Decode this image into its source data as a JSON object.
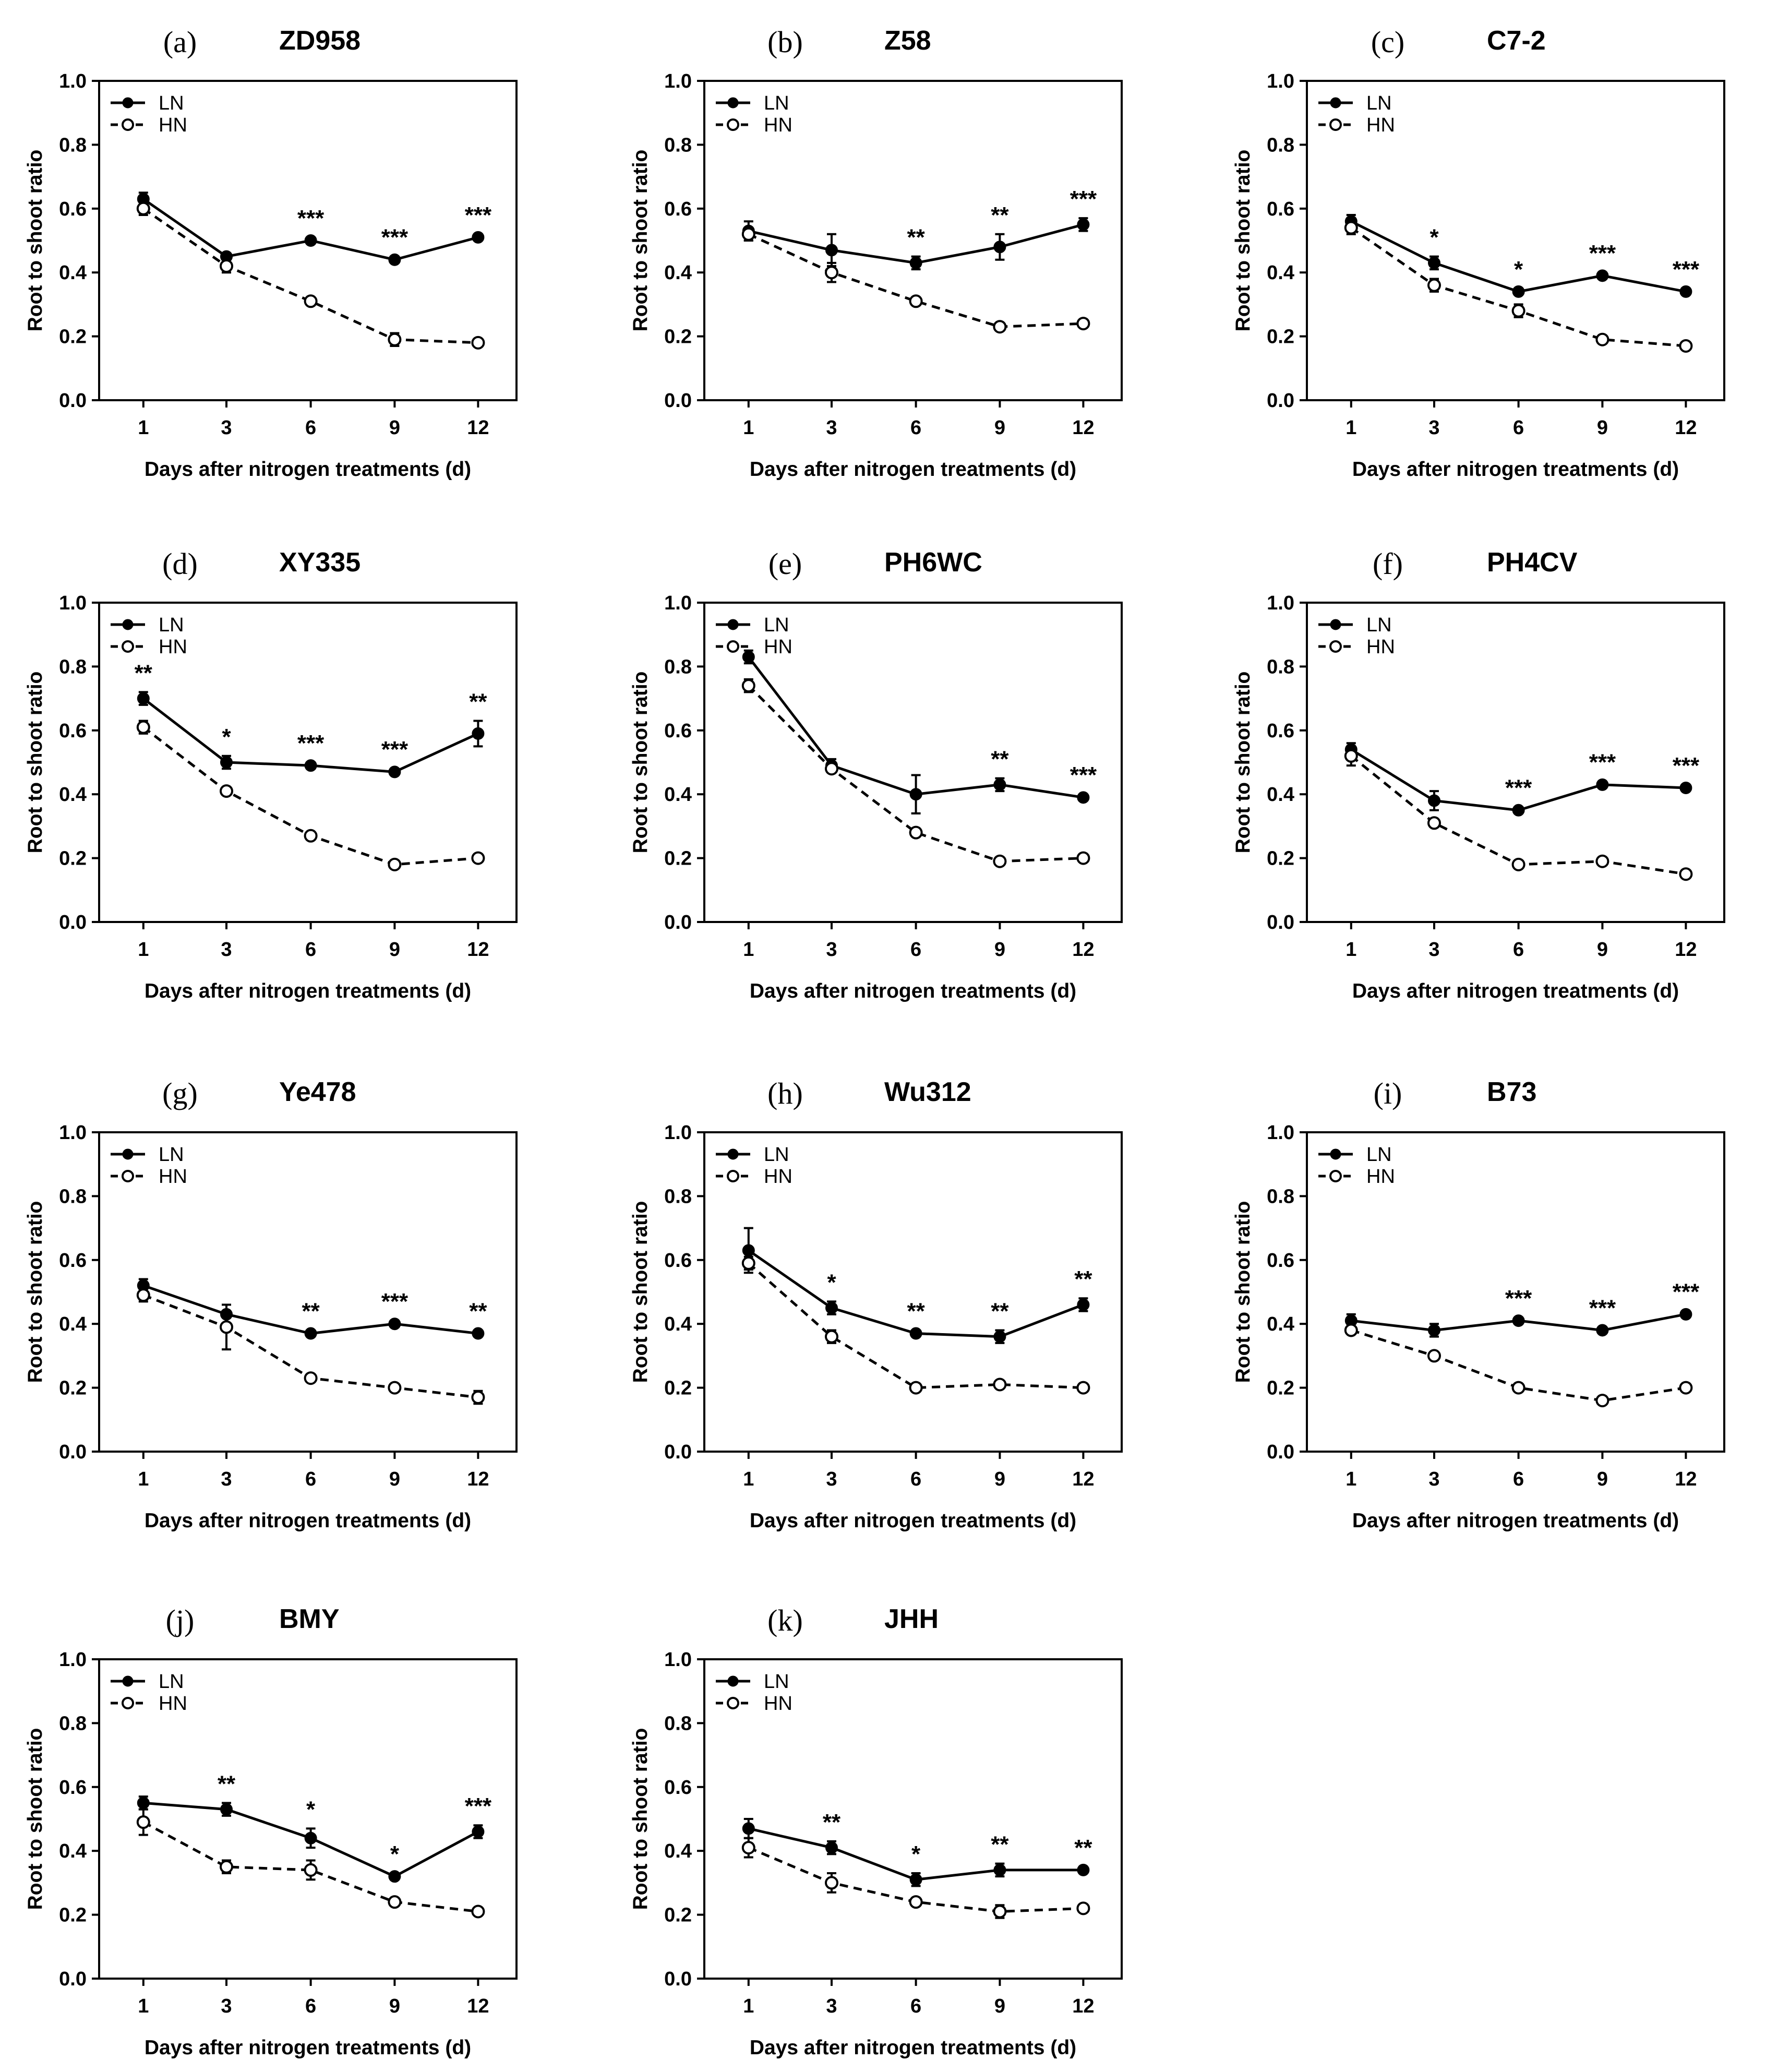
{
  "figure": {
    "xlabel": "Days after nitrogen treatments (d)",
    "ylabel": "Root to shoot ratio",
    "legend": [
      "LN",
      "HN"
    ]
  },
  "chart_data": [
    {
      "type": "line",
      "letter": "(a)",
      "title": "ZD958",
      "categories": [
        "1",
        "3",
        "6",
        "9",
        "12"
      ],
      "xlabel": "Days after nitrogen treatments (d)",
      "ylabel": "Root to shoot ratio",
      "ylim": [
        0,
        1.0
      ],
      "yticks": [
        "0.0",
        "0.2",
        "0.4",
        "0.6",
        "0.8",
        "1.0"
      ],
      "legend_position": "top-left",
      "series": [
        {
          "name": "LN",
          "values": [
            0.63,
            0.45,
            0.5,
            0.44,
            0.51
          ],
          "errors": [
            0.02,
            0.01,
            0.01,
            0.01,
            0.01
          ]
        },
        {
          "name": "HN",
          "values": [
            0.6,
            0.42,
            0.31,
            0.19,
            0.18
          ],
          "errors": [
            0.02,
            0.02,
            0.01,
            0.02,
            0.01
          ]
        }
      ],
      "annotations": [
        "",
        "",
        "***",
        "***",
        "***"
      ]
    },
    {
      "type": "line",
      "letter": "(b)",
      "title": "Z58",
      "categories": [
        "1",
        "3",
        "6",
        "9",
        "12"
      ],
      "xlabel": "Days after nitrogen treatments (d)",
      "ylabel": "Root to shoot ratio",
      "ylim": [
        0,
        1.0
      ],
      "yticks": [
        "0.0",
        "0.2",
        "0.4",
        "0.6",
        "0.8",
        "1.0"
      ],
      "legend_position": "top-left",
      "series": [
        {
          "name": "LN",
          "values": [
            0.53,
            0.47,
            0.43,
            0.48,
            0.55
          ],
          "errors": [
            0.03,
            0.05,
            0.02,
            0.04,
            0.02
          ]
        },
        {
          "name": "HN",
          "values": [
            0.52,
            0.4,
            0.31,
            0.23,
            0.24
          ],
          "errors": [
            0.02,
            0.03,
            0.01,
            0.01,
            0.01
          ]
        }
      ],
      "annotations": [
        "",
        "",
        "**",
        "**",
        "***"
      ]
    },
    {
      "type": "line",
      "letter": "(c)",
      "title": "C7-2",
      "categories": [
        "1",
        "3",
        "6",
        "9",
        "12"
      ],
      "xlabel": "Days after nitrogen treatments (d)",
      "ylabel": "Root to shoot ratio",
      "ylim": [
        0,
        1.0
      ],
      "yticks": [
        "0.0",
        "0.2",
        "0.4",
        "0.6",
        "0.8",
        "1.0"
      ],
      "legend_position": "top-left",
      "series": [
        {
          "name": "LN",
          "values": [
            0.56,
            0.43,
            0.34,
            0.39,
            0.34
          ],
          "errors": [
            0.02,
            0.02,
            0.01,
            0.01,
            0.01
          ]
        },
        {
          "name": "HN",
          "values": [
            0.54,
            0.36,
            0.28,
            0.19,
            0.17
          ],
          "errors": [
            0.02,
            0.02,
            0.02,
            0.01,
            0.01
          ]
        }
      ],
      "annotations": [
        "",
        "*",
        "*",
        "***",
        "***"
      ]
    },
    {
      "type": "line",
      "letter": "(d)",
      "title": "XY335",
      "categories": [
        "1",
        "3",
        "6",
        "9",
        "12"
      ],
      "xlabel": "Days after nitrogen treatments (d)",
      "ylabel": "Root to shoot ratio",
      "ylim": [
        0,
        1.0
      ],
      "yticks": [
        "0.0",
        "0.2",
        "0.4",
        "0.6",
        "0.8",
        "1.0"
      ],
      "legend_position": "top-left",
      "series": [
        {
          "name": "LN",
          "values": [
            0.7,
            0.5,
            0.49,
            0.47,
            0.59
          ],
          "errors": [
            0.02,
            0.02,
            0.01,
            0.01,
            0.04
          ]
        },
        {
          "name": "HN",
          "values": [
            0.61,
            0.41,
            0.27,
            0.18,
            0.2
          ],
          "errors": [
            0.02,
            0.01,
            0.01,
            0.01,
            0.01
          ]
        }
      ],
      "annotations": [
        "**",
        "*",
        "***",
        "***",
        "**"
      ]
    },
    {
      "type": "line",
      "letter": "(e)",
      "title": "PH6WC",
      "categories": [
        "1",
        "3",
        "6",
        "9",
        "12"
      ],
      "xlabel": "Days after nitrogen treatments (d)",
      "ylabel": "Root to shoot ratio",
      "ylim": [
        0,
        1.0
      ],
      "yticks": [
        "0.0",
        "0.2",
        "0.4",
        "0.6",
        "0.8",
        "1.0"
      ],
      "legend_position": "top-left",
      "series": [
        {
          "name": "LN",
          "values": [
            0.83,
            0.49,
            0.4,
            0.43,
            0.39
          ],
          "errors": [
            0.02,
            0.02,
            0.06,
            0.02,
            0.01
          ]
        },
        {
          "name": "HN",
          "values": [
            0.74,
            0.48,
            0.28,
            0.19,
            0.2
          ],
          "errors": [
            0.02,
            0.01,
            0.01,
            0.01,
            0.01
          ]
        }
      ],
      "annotations": [
        "",
        "",
        "",
        "**",
        "***"
      ]
    },
    {
      "type": "line",
      "letter": "(f)",
      "title": "PH4CV",
      "categories": [
        "1",
        "3",
        "6",
        "9",
        "12"
      ],
      "xlabel": "Days after nitrogen treatments (d)",
      "ylabel": "Root to shoot ratio",
      "ylim": [
        0,
        1.0
      ],
      "yticks": [
        "0.0",
        "0.2",
        "0.4",
        "0.6",
        "0.8",
        "1.0"
      ],
      "legend_position": "top-left",
      "series": [
        {
          "name": "LN",
          "values": [
            0.54,
            0.38,
            0.35,
            0.43,
            0.42
          ],
          "errors": [
            0.02,
            0.03,
            0.01,
            0.01,
            0.01
          ]
        },
        {
          "name": "HN",
          "values": [
            0.52,
            0.31,
            0.18,
            0.19,
            0.15
          ],
          "errors": [
            0.03,
            0.01,
            0.01,
            0.01,
            0.01
          ]
        }
      ],
      "annotations": [
        "",
        "",
        "***",
        "***",
        "***"
      ]
    },
    {
      "type": "line",
      "letter": "(g)",
      "title": "Ye478",
      "categories": [
        "1",
        "3",
        "6",
        "9",
        "12"
      ],
      "xlabel": "Days after nitrogen treatments (d)",
      "ylabel": "Root to shoot ratio",
      "ylim": [
        0,
        1.0
      ],
      "yticks": [
        "0.0",
        "0.2",
        "0.4",
        "0.6",
        "0.8",
        "1.0"
      ],
      "legend_position": "top-left",
      "series": [
        {
          "name": "LN",
          "values": [
            0.52,
            0.43,
            0.37,
            0.4,
            0.37
          ],
          "errors": [
            0.02,
            0.03,
            0.01,
            0.01,
            0.01
          ]
        },
        {
          "name": "HN",
          "values": [
            0.49,
            0.39,
            0.23,
            0.2,
            0.17
          ],
          "errors": [
            0.02,
            0.07,
            0.01,
            0.01,
            0.02
          ]
        }
      ],
      "annotations": [
        "",
        "",
        "**",
        "***",
        "**"
      ]
    },
    {
      "type": "line",
      "letter": "(h)",
      "title": "Wu312",
      "categories": [
        "1",
        "3",
        "6",
        "9",
        "12"
      ],
      "xlabel": "Days after nitrogen treatments (d)",
      "ylabel": "Root to shoot ratio",
      "ylim": [
        0,
        1.0
      ],
      "yticks": [
        "0.0",
        "0.2",
        "0.4",
        "0.6",
        "0.8",
        "1.0"
      ],
      "legend_position": "top-left",
      "series": [
        {
          "name": "LN",
          "values": [
            0.63,
            0.45,
            0.37,
            0.36,
            0.46
          ],
          "errors": [
            0.07,
            0.02,
            0.01,
            0.02,
            0.02
          ]
        },
        {
          "name": "HN",
          "values": [
            0.59,
            0.36,
            0.2,
            0.21,
            0.2
          ],
          "errors": [
            0.02,
            0.02,
            0.01,
            0.01,
            0.01
          ]
        }
      ],
      "annotations": [
        "",
        "*",
        "**",
        "**",
        "**"
      ]
    },
    {
      "type": "line",
      "letter": "(i)",
      "title": "B73",
      "categories": [
        "1",
        "3",
        "6",
        "9",
        "12"
      ],
      "xlabel": "Days after nitrogen treatments (d)",
      "ylabel": "Root to shoot ratio",
      "ylim": [
        0,
        1.0
      ],
      "yticks": [
        "0.0",
        "0.2",
        "0.4",
        "0.6",
        "0.8",
        "1.0"
      ],
      "legend_position": "top-left",
      "series": [
        {
          "name": "LN",
          "values": [
            0.41,
            0.38,
            0.41,
            0.38,
            0.43
          ],
          "errors": [
            0.02,
            0.02,
            0.01,
            0.01,
            0.01
          ]
        },
        {
          "name": "HN",
          "values": [
            0.38,
            0.3,
            0.2,
            0.16,
            0.2
          ],
          "errors": [
            0.01,
            0.01,
            0.01,
            0.01,
            0.01
          ]
        }
      ],
      "annotations": [
        "",
        "",
        "***",
        "***",
        "***"
      ]
    },
    {
      "type": "line",
      "letter": "(j)",
      "title": "BMY",
      "categories": [
        "1",
        "3",
        "6",
        "9",
        "12"
      ],
      "xlabel": "Days after nitrogen treatments (d)",
      "ylabel": "Root to shoot ratio",
      "ylim": [
        0,
        1.0
      ],
      "yticks": [
        "0.0",
        "0.2",
        "0.4",
        "0.6",
        "0.8",
        "1.0"
      ],
      "legend_position": "top-left",
      "series": [
        {
          "name": "LN",
          "values": [
            0.55,
            0.53,
            0.44,
            0.32,
            0.46
          ],
          "errors": [
            0.02,
            0.02,
            0.03,
            0.01,
            0.02
          ]
        },
        {
          "name": "HN",
          "values": [
            0.49,
            0.35,
            0.34,
            0.24,
            0.21
          ],
          "errors": [
            0.04,
            0.02,
            0.03,
            0.01,
            0.01
          ]
        }
      ],
      "annotations": [
        "",
        "**",
        "*",
        "*",
        "***"
      ]
    },
    {
      "type": "line",
      "letter": "(k)",
      "title": "JHH",
      "categories": [
        "1",
        "3",
        "6",
        "9",
        "12"
      ],
      "xlabel": "Days after nitrogen treatments (d)",
      "ylabel": "Root to shoot ratio",
      "ylim": [
        0,
        1.0
      ],
      "yticks": [
        "0.0",
        "0.2",
        "0.4",
        "0.6",
        "0.8",
        "1.0"
      ],
      "legend_position": "top-left",
      "series": [
        {
          "name": "LN",
          "values": [
            0.47,
            0.41,
            0.31,
            0.34,
            0.34
          ],
          "errors": [
            0.03,
            0.02,
            0.02,
            0.02,
            0.01
          ]
        },
        {
          "name": "HN",
          "values": [
            0.41,
            0.3,
            0.24,
            0.21,
            0.22
          ],
          "errors": [
            0.03,
            0.03,
            0.01,
            0.02,
            0.01
          ]
        }
      ],
      "annotations": [
        "",
        "**",
        "*",
        "**",
        "**"
      ]
    }
  ]
}
